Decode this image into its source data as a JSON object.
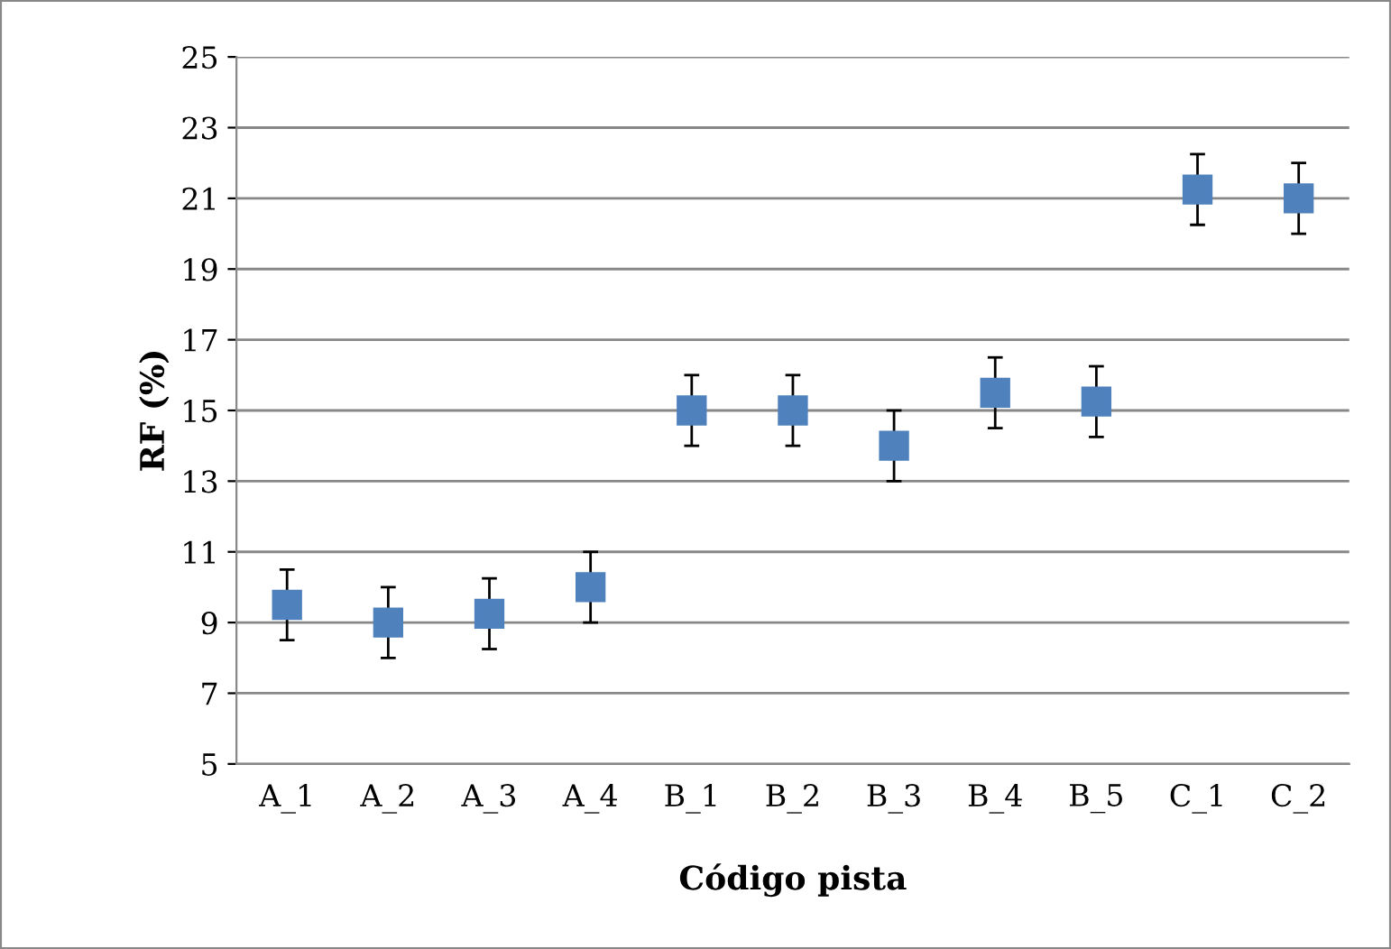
{
  "chart_data": {
    "type": "scatter",
    "xlabel": "Código pista",
    "ylabel": "RF (%)",
    "categories": [
      "A_1",
      "A_2",
      "A_3",
      "A_4",
      "B_1",
      "B_2",
      "B_3",
      "B_4",
      "B_5",
      "C_1",
      "C_2"
    ],
    "values": [
      9.5,
      9.0,
      9.25,
      10.0,
      15.0,
      15.0,
      14.0,
      15.5,
      15.25,
      21.25,
      21.0
    ],
    "errors": [
      1,
      1,
      1,
      1,
      1,
      1,
      1,
      1,
      1,
      1,
      1
    ],
    "color": "#4f81bd",
    "marker": "square",
    "ylim": [
      5,
      25
    ],
    "yticks": [
      5,
      7,
      9,
      11,
      13,
      15,
      17,
      19,
      21,
      23,
      25
    ],
    "grid": "y"
  }
}
